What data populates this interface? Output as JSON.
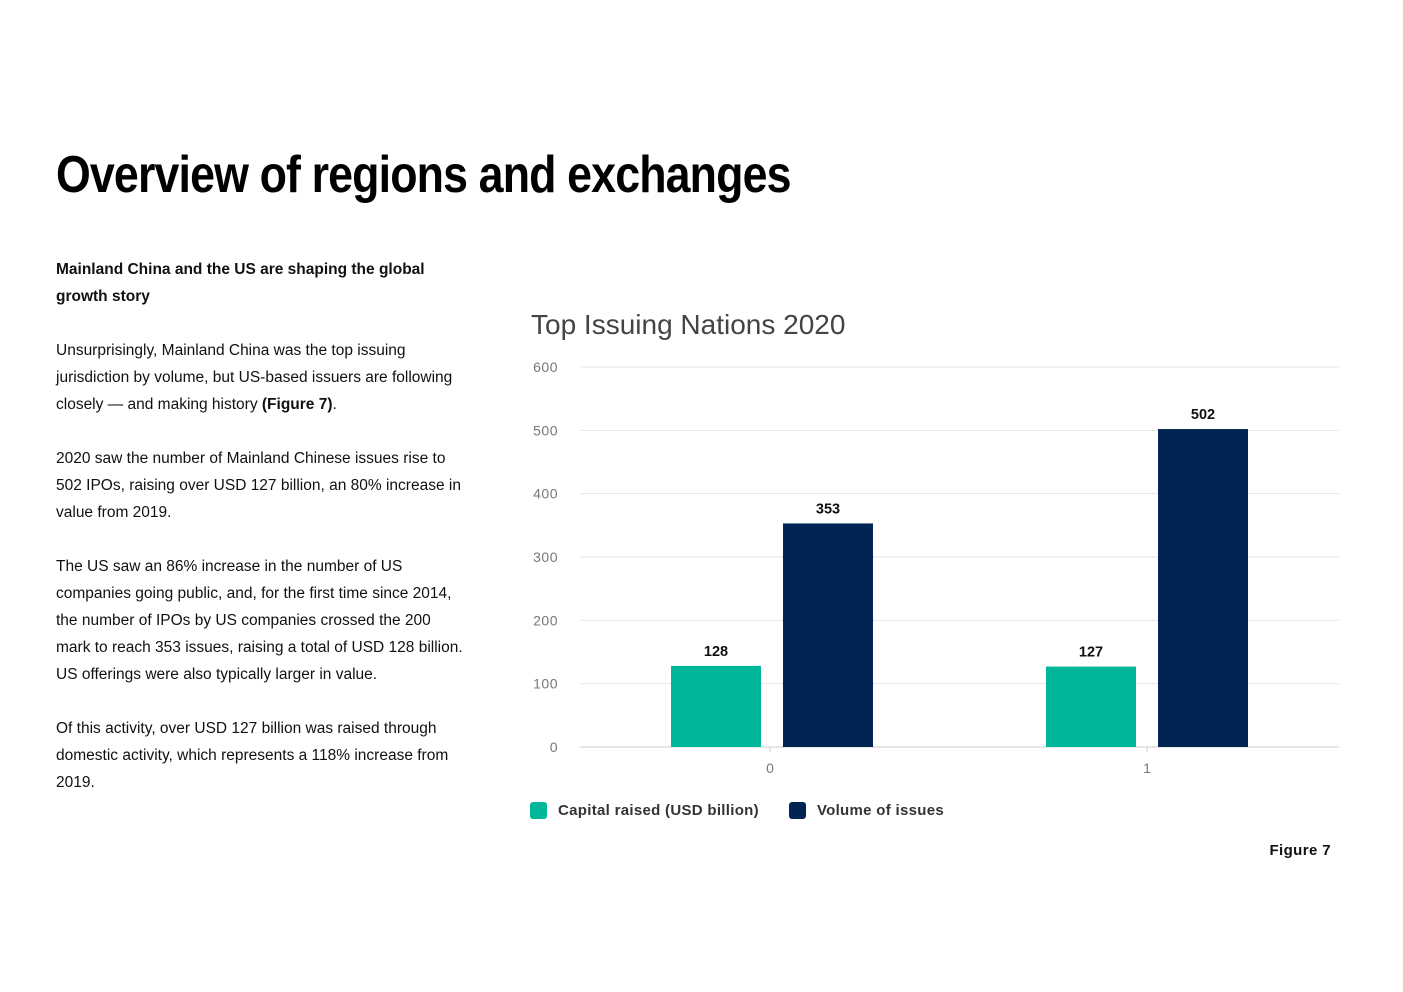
{
  "page": {
    "title": "Overview of regions and exchanges",
    "figure_label": "Figure 7"
  },
  "text": {
    "lead": "Mainland China and the US are shaping the global growth story",
    "p1_before": "Unsurprisingly, Mainland China was the top issuing jurisdiction by volume, but US-based issuers are following closely — and making history ",
    "p1_ref": "(Figure 7)",
    "p1_after": ".",
    "p2": "2020 saw the number of Mainland Chinese issues rise to 502 IPOs, raising over USD 127 billion, an 80% increase in value from 2019.",
    "p3": "The US saw an 86% increase in the number of US companies going public, and, for the first time since 2014, the number of IPOs by US companies crossed the 200 mark to reach 353 issues, raising a total of USD 128 billion. US offerings were also typically larger in value.",
    "p4": "Of this activity, over USD 127 billion was raised through domestic activity, which represents a 118% increase from 2019."
  },
  "chart_data": {
    "type": "bar",
    "title": "Top Issuing Nations 2020",
    "categories": [
      "0",
      "1"
    ],
    "series": [
      {
        "name": "Capital raised (USD billion)",
        "values": [
          128,
          127
        ],
        "color": "#00b899"
      },
      {
        "name": "Volume of issues",
        "values": [
          353,
          502
        ],
        "color": "#002552"
      }
    ],
    "ylim": [
      0,
      600
    ],
    "yticks": [
      0,
      100,
      200,
      300,
      400,
      500,
      600
    ],
    "grid": true,
    "legend": "bottom-left",
    "data_labels": true
  }
}
